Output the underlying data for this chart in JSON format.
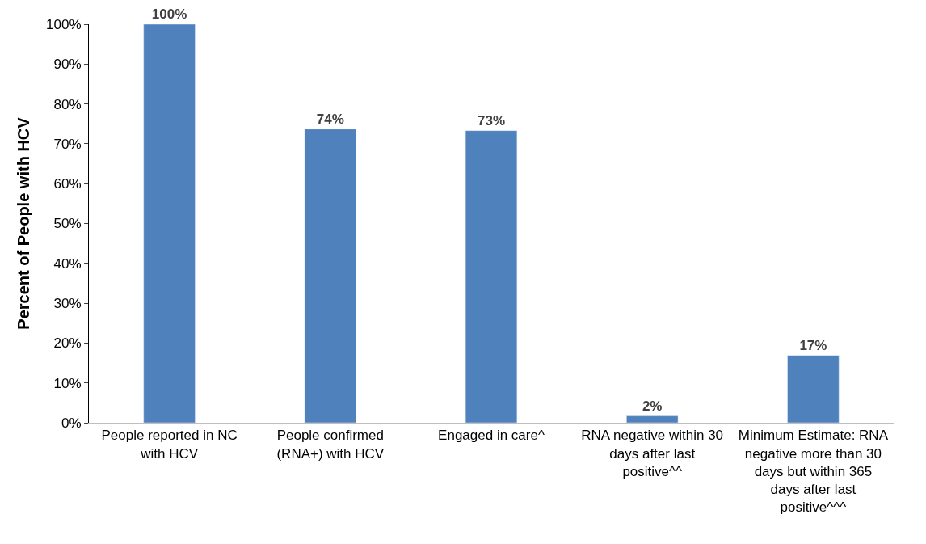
{
  "chart_data": {
    "type": "bar",
    "ylabel": "Percent of People with HCV",
    "categories": [
      "People reported in NC with HCV",
      "People confirmed (RNA+) with HCV",
      "Engaged in care^",
      "RNA negative within 30 days after last positive^^",
      "Minimum Estimate: RNA negative more than 30 days but within 365 days after last positive^^^"
    ],
    "values": [
      100,
      73.7,
      73.3,
      1.7,
      16.9
    ],
    "value_labels": [
      "100%",
      "74%",
      "73%",
      "2%",
      "17%"
    ],
    "color": "#4f81bd",
    "ylim": [
      0,
      100
    ],
    "yticks": [
      {
        "value": 0,
        "label": "0%"
      },
      {
        "value": 10,
        "label": "10%"
      },
      {
        "value": 20,
        "label": "20%"
      },
      {
        "value": 30,
        "label": "30%"
      },
      {
        "value": 40,
        "label": "40%"
      },
      {
        "value": 50,
        "label": "50%"
      },
      {
        "value": 60,
        "label": "60%"
      },
      {
        "value": 70,
        "label": "70%"
      },
      {
        "value": 80,
        "label": "80%"
      },
      {
        "value": 90,
        "label": "90%"
      },
      {
        "value": 100,
        "label": "100%"
      }
    ],
    "legend": false
  }
}
